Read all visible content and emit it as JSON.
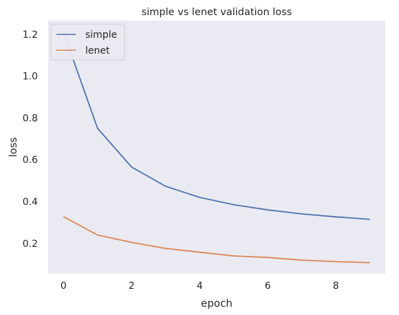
{
  "chart_data": {
    "type": "line",
    "title": "simple vs lenet validation loss",
    "xlabel": "epoch",
    "ylabel": "loss",
    "x": [
      0,
      1,
      2,
      3,
      4,
      5,
      6,
      7,
      8,
      9
    ],
    "xlim": [
      -0.45,
      9.45
    ],
    "ylim": [
      0.055,
      1.265
    ],
    "xticks": [
      0,
      2,
      4,
      6,
      8
    ],
    "yticks": [
      0.2,
      0.4,
      0.6,
      0.8,
      1.0,
      1.2
    ],
    "xtick_labels": [
      "0",
      "2",
      "4",
      "6",
      "8"
    ],
    "ytick_labels": [
      "0.2",
      "0.4",
      "0.6",
      "0.8",
      "1.0",
      "1.2"
    ],
    "grid": false,
    "legend_position": "top-left",
    "background": "#eaeaf2",
    "series": [
      {
        "name": "simple",
        "color": "#4c72b0",
        "values": [
          1.21,
          0.75,
          0.565,
          0.473,
          0.42,
          0.385,
          0.36,
          0.341,
          0.327,
          0.315
        ]
      },
      {
        "name": "lenet",
        "color": "#dd8452",
        "values": [
          0.328,
          0.24,
          0.205,
          0.176,
          0.158,
          0.14,
          0.133,
          0.12,
          0.113,
          0.108
        ]
      }
    ]
  }
}
